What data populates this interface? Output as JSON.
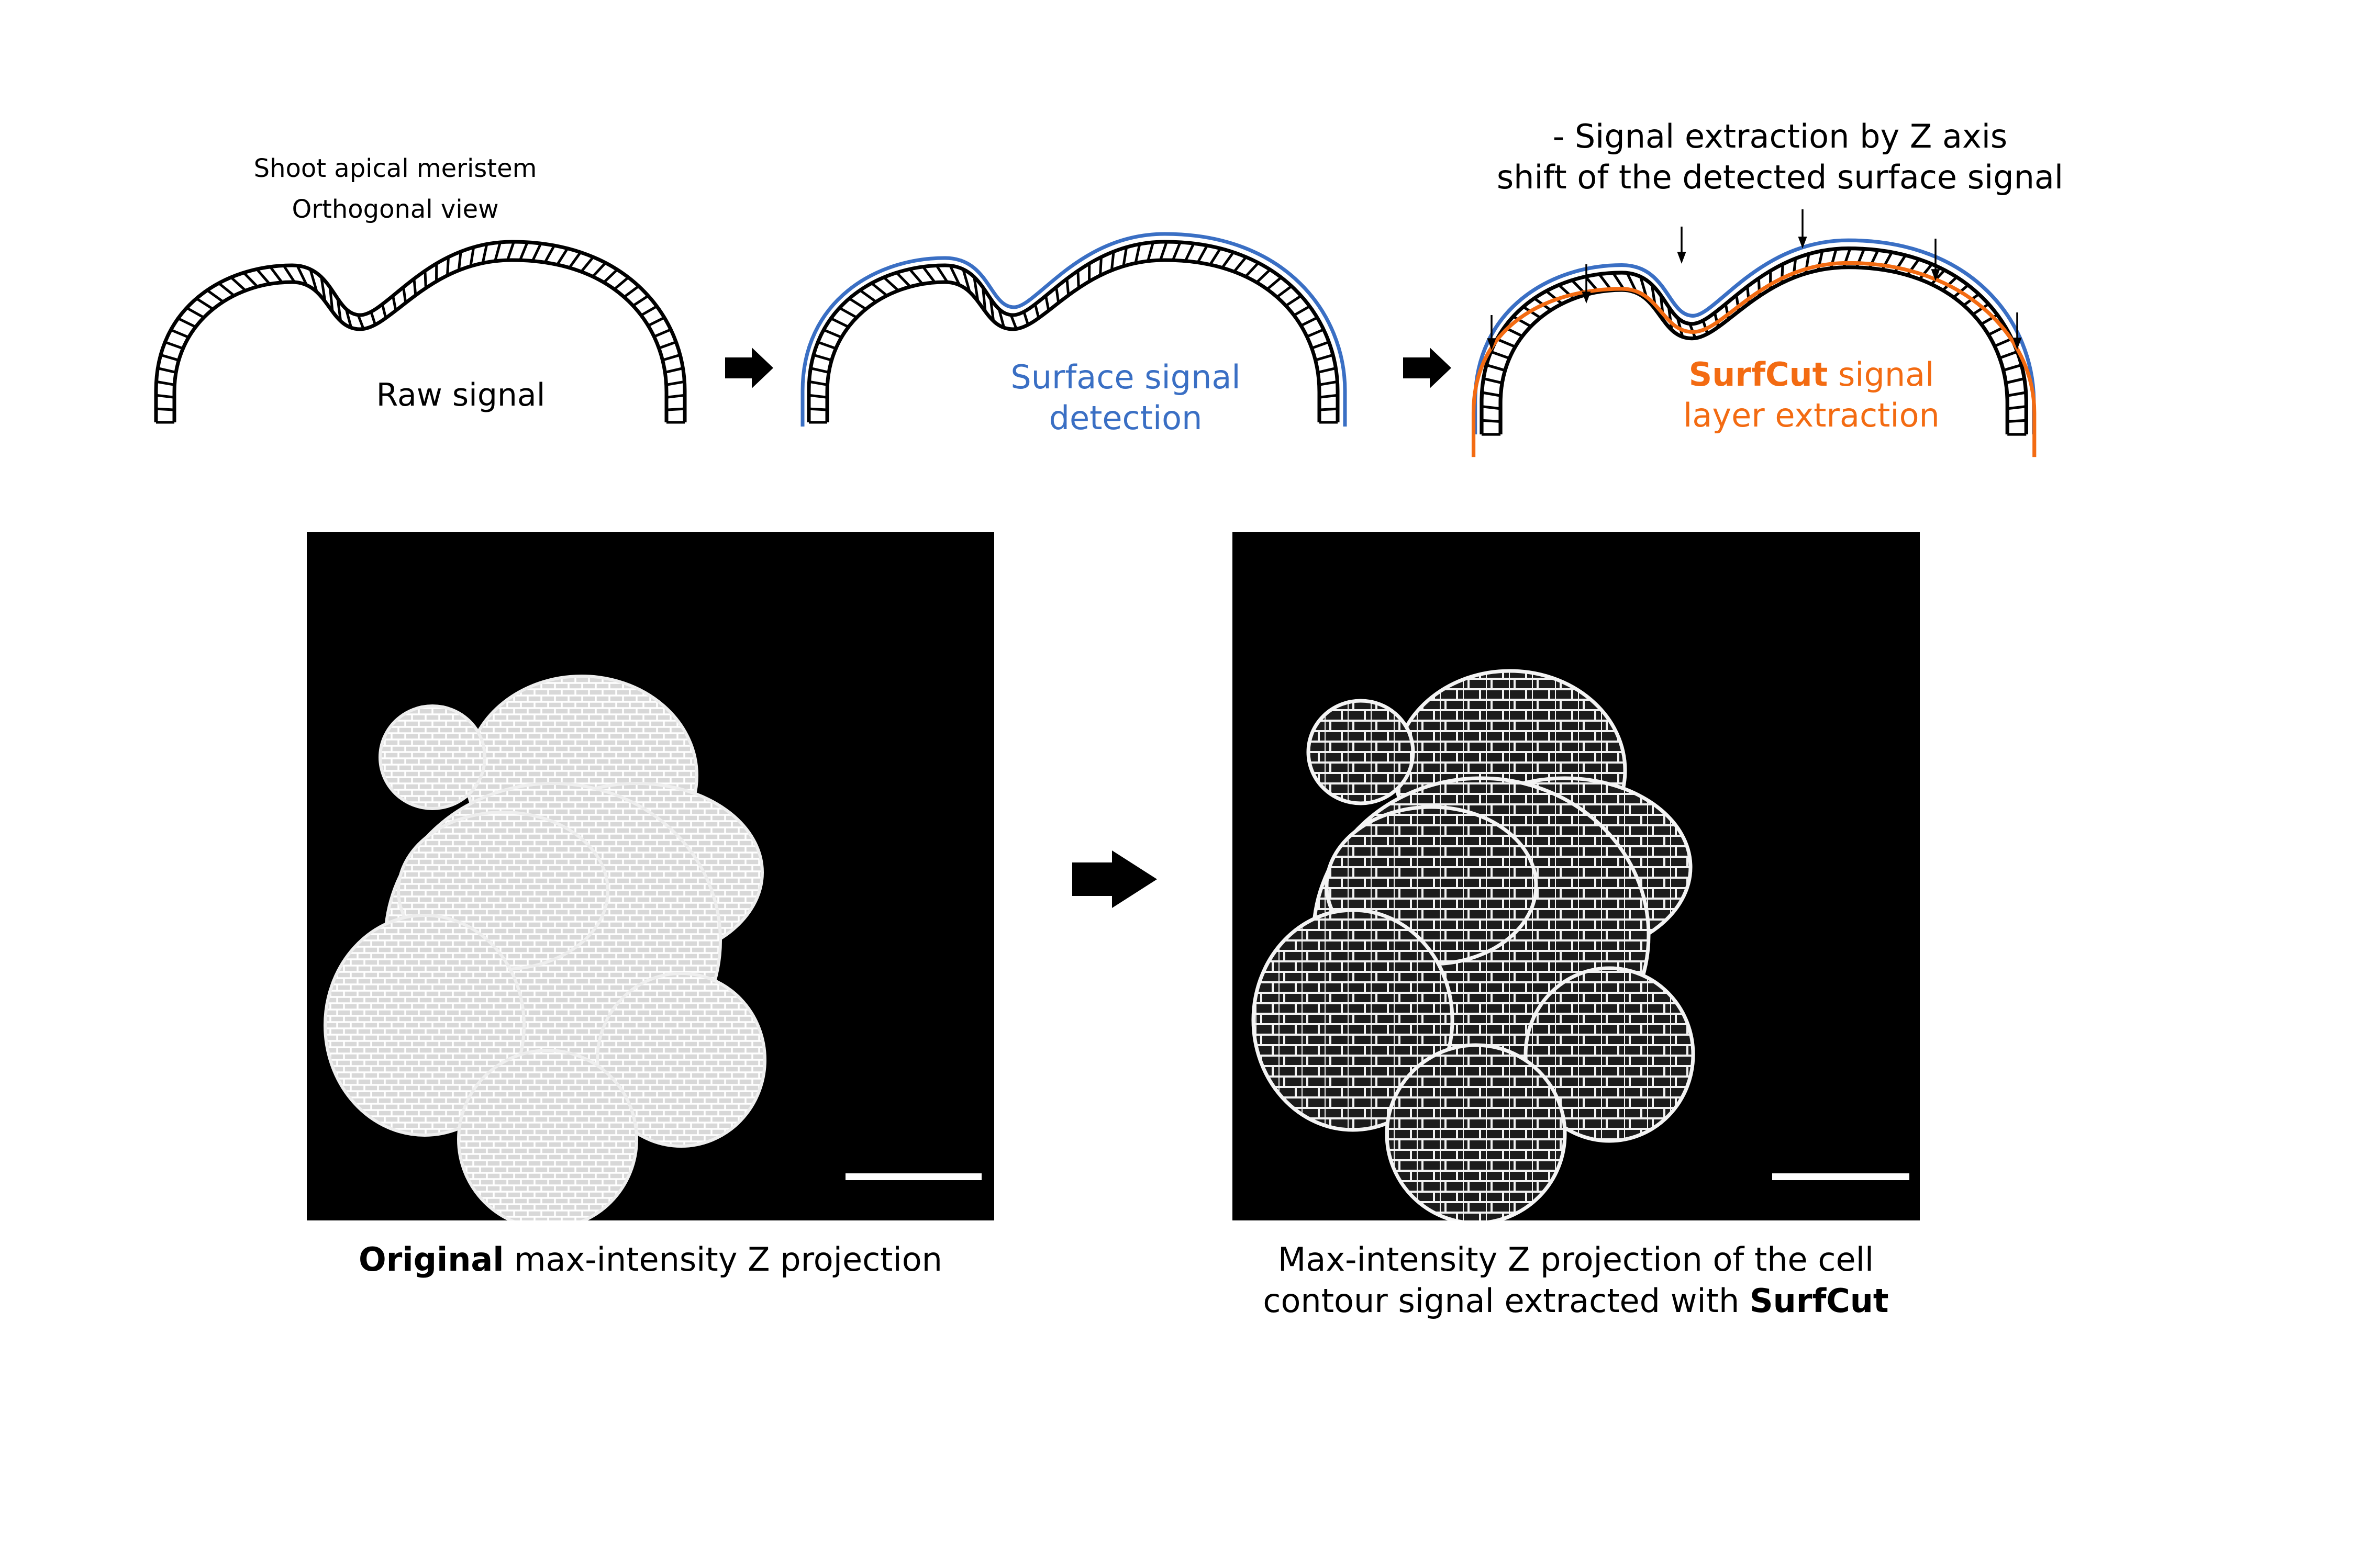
{
  "schematic": {
    "header": {
      "line1": "Shoot apical meristem",
      "line2": "Orthogonal view"
    },
    "step1": {
      "label": "Raw signal"
    },
    "step2": {
      "line1": "Surface signal",
      "line2": "detection"
    },
    "step3": {
      "note_line1": "- Signal extraction by Z axis",
      "note_line2": "shift of the detected surface signal",
      "brand": "SurfCut",
      "label_rest": " signal",
      "line2": "layer extraction"
    }
  },
  "images": {
    "left": {
      "caption_bold": "Original",
      "caption_rest": " max-intensity Z projection"
    },
    "right": {
      "caption_line1": "Max-intensity Z projection of the cell",
      "caption_line2_prefix": "contour signal extracted with ",
      "caption_line2_bold": "SurfCut"
    }
  },
  "colors": {
    "surface": "#3a6fc4",
    "extraction": "#f36b12",
    "outline": "#000000"
  },
  "icons": [
    "arrow-right-icon",
    "arrow-down-icon",
    "scale-bar"
  ]
}
